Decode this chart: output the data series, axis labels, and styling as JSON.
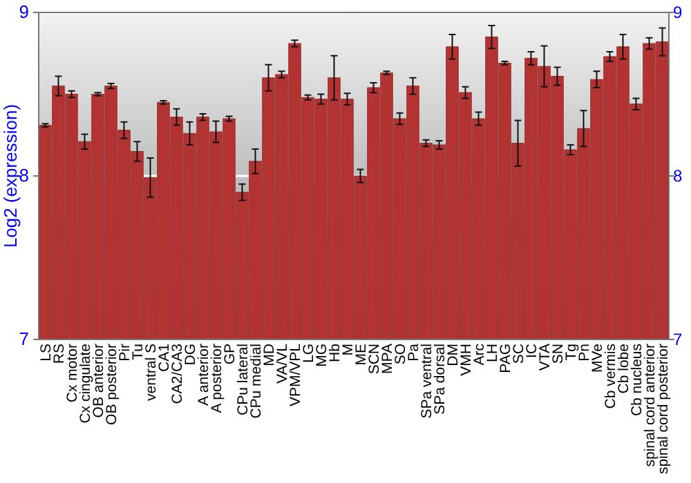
{
  "chart_data": {
    "type": "bar",
    "ylabel": "Log2 (expression)",
    "categories": [
      "LS",
      "RS",
      "Cx motor",
      "Cx cingulate",
      "OB anterior",
      "OB posterior",
      "Pir",
      "Tu",
      "ventral S",
      "CA1",
      "CA2/CA3",
      "DG",
      "A anterior",
      "A posterior",
      "GP",
      "CPu lateral",
      "CPu medial",
      "MD",
      "VA/VL",
      "VPM/VPL",
      "LG",
      "MG",
      "Hb",
      "M",
      "ME",
      "SCN",
      "MPA",
      "SO",
      "Pa",
      "SPa ventral",
      "SPa dorsal",
      "DM",
      "VMH",
      "Arc",
      "LH",
      "PAG",
      "SC",
      "IC",
      "VTA",
      "SN",
      "Tg",
      "Pn",
      "MVe",
      "Cb vermis",
      "Cb lobe",
      "Cb nucleus",
      "spinal cord anterior",
      "spinal cord posterior"
    ],
    "values": [
      8.31,
      8.55,
      8.5,
      8.21,
      8.5,
      8.55,
      8.28,
      8.15,
      7.99,
      8.45,
      8.36,
      8.26,
      8.36,
      8.27,
      8.35,
      7.9,
      8.09,
      8.6,
      8.62,
      8.81,
      8.48,
      8.47,
      8.6,
      8.47,
      8.0,
      8.54,
      8.63,
      8.35,
      8.55,
      8.2,
      8.19,
      8.79,
      8.51,
      8.35,
      8.85,
      8.69,
      8.2,
      8.72,
      8.67,
      8.61,
      8.16,
      8.29,
      8.59,
      8.73,
      8.79,
      8.44,
      8.81,
      8.82
    ],
    "errors": [
      0.01,
      0.06,
      0.02,
      0.045,
      0.01,
      0.015,
      0.05,
      0.06,
      0.12,
      0.01,
      0.05,
      0.07,
      0.02,
      0.065,
      0.015,
      0.05,
      0.075,
      0.08,
      0.02,
      0.02,
      0.015,
      0.03,
      0.135,
      0.035,
      0.04,
      0.03,
      0.01,
      0.035,
      0.05,
      0.02,
      0.025,
      0.075,
      0.035,
      0.04,
      0.07,
      0.01,
      0.14,
      0.04,
      0.125,
      0.055,
      0.03,
      0.11,
      0.05,
      0.03,
      0.075,
      0.035,
      0.035,
      0.085
    ],
    "color": "#b33333",
    "ylim": [
      7,
      9
    ],
    "yticks": [
      7,
      8,
      9
    ],
    "y2lim": [
      7,
      9
    ],
    "y2ticks": [
      7,
      8,
      9
    ],
    "grid": "y"
  }
}
